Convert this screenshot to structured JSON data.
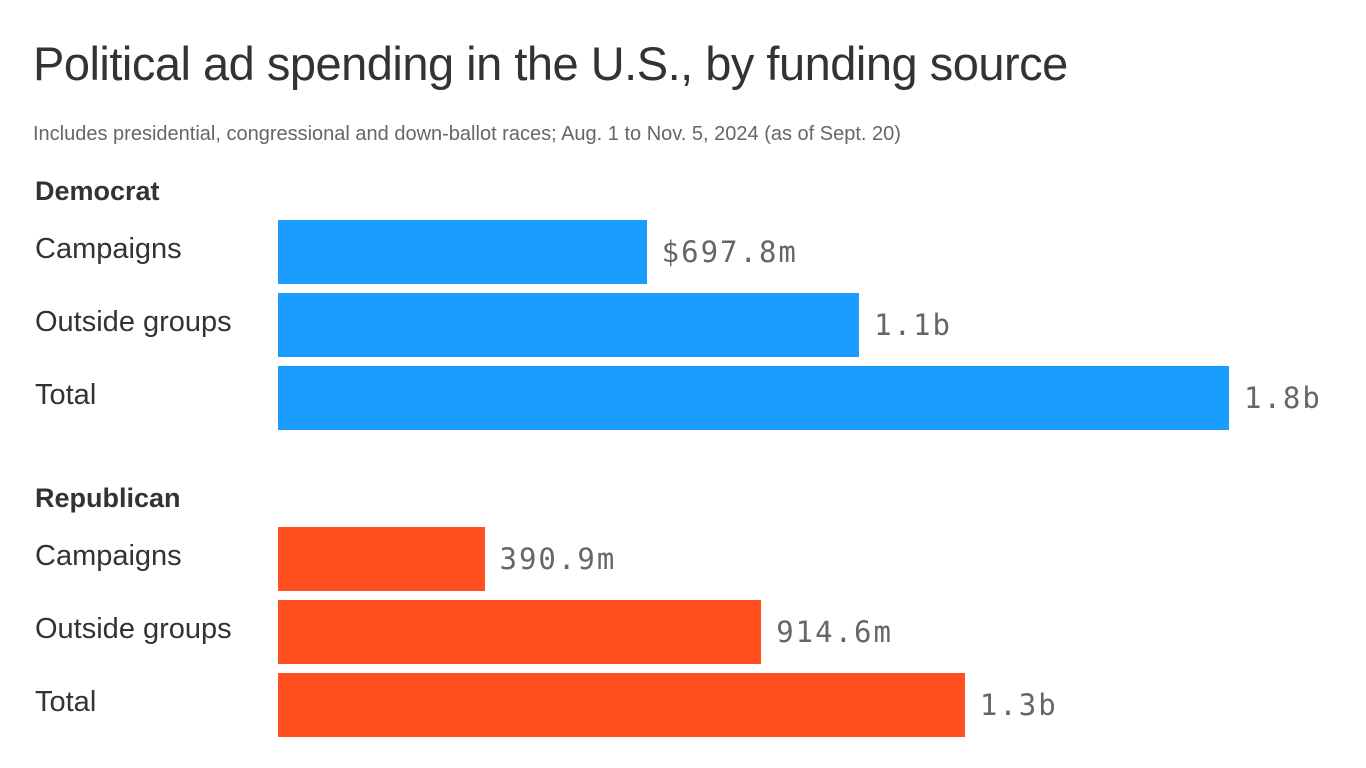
{
  "chart_data": {
    "type": "bar",
    "orientation": "horizontal",
    "title": "Political ad spending in the U.S., by funding source",
    "subtitle": "Includes presidential, congressional and down-ballot races; Aug. 1 to Nov. 5, 2024 (as of Sept. 20)",
    "unit": "USD",
    "grid": false,
    "groups": [
      {
        "name": "Democrat",
        "color": "#1a9dff",
        "categories": [
          "Campaigns",
          "Outside groups",
          "Total"
        ],
        "values": [
          697.8,
          1100,
          1800
        ],
        "labels": [
          "$697.8m",
          "1.1b",
          "1.8b"
        ]
      },
      {
        "name": "Republican",
        "color": "#ff4f1f",
        "categories": [
          "Campaigns",
          "Outside groups",
          "Total"
        ],
        "values": [
          390.9,
          914.6,
          1300
        ],
        "labels": [
          "390.9m",
          "914.6m",
          "1.3b"
        ]
      }
    ],
    "values_unit": "millions of USD"
  }
}
